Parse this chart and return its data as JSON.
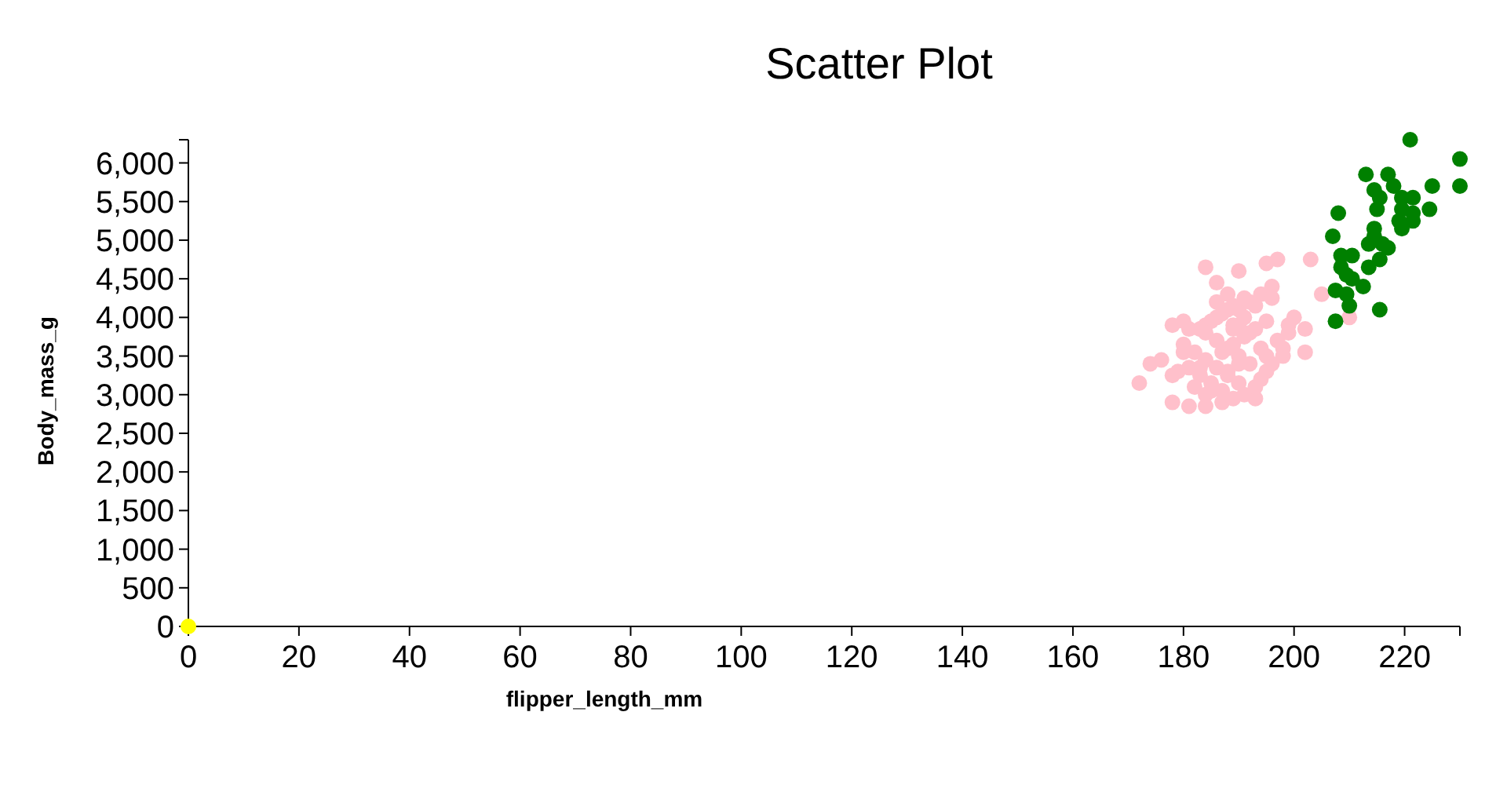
{
  "chart_data": {
    "type": "scatter",
    "title": "Scatter Plot",
    "xlabel": "flipper_length_mm",
    "ylabel": "Body_mass_g",
    "xlim": [
      0,
      230
    ],
    "ylim": [
      0,
      6300
    ],
    "xticks": [
      0,
      20,
      40,
      60,
      80,
      100,
      120,
      140,
      160,
      180,
      200,
      220
    ],
    "yticks": [
      0,
      {
        "value": 500,
        "label": "500"
      },
      {
        "value": 1000,
        "label": "1,000"
      },
      {
        "value": 1500,
        "label": "1,500"
      },
      {
        "value": 2000,
        "label": "2,000"
      },
      {
        "value": 2500,
        "label": "2,500"
      },
      {
        "value": 3000,
        "label": "3,000"
      },
      {
        "value": 3500,
        "label": "3,500"
      },
      {
        "value": 4000,
        "label": "4,000"
      },
      {
        "value": 4500,
        "label": "4,500"
      },
      {
        "value": 5000,
        "label": "5,000"
      },
      {
        "value": 5500,
        "label": "5,500"
      },
      {
        "value": 6000,
        "label": "6,000"
      }
    ],
    "marker": "circle",
    "series": [
      {
        "color": "#ffc0cb",
        "x": [
          184,
          190,
          197,
          195,
          203,
          205,
          186,
          188,
          178,
          180,
          172,
          174,
          176,
          178,
          178,
          181,
          184,
          187,
          193,
          202,
          202,
          199,
          200,
          198,
          195,
          184,
          186,
          190,
          192,
          194,
          196,
          191,
          189,
          187,
          185,
          183,
          180,
          182,
          184,
          186,
          188,
          190,
          194,
          196,
          198,
          181,
          183,
          185,
          187,
          189,
          191,
          193,
          195,
          197,
          180,
          184,
          186,
          188,
          190,
          192,
          194,
          187,
          189,
          191,
          193,
          195,
          182,
          184,
          188,
          190,
          181,
          189,
          191,
          186,
          188,
          190,
          192,
          193,
          196,
          199,
          179,
          183,
          189,
          210,
          185
        ],
        "values": [
          4650,
          4600,
          4750,
          4700,
          4750,
          4300,
          4450,
          4300,
          3900,
          3950,
          3150,
          3400,
          3450,
          3250,
          2900,
          2850,
          2850,
          2900,
          2950,
          3550,
          3850,
          3800,
          4000,
          3500,
          3500,
          3900,
          4000,
          4100,
          4200,
          4300,
          4400,
          4250,
          4150,
          4050,
          3950,
          3850,
          3650,
          3550,
          3450,
          3350,
          3250,
          3150,
          3200,
          3400,
          3600,
          3350,
          3250,
          3150,
          3050,
          2950,
          3000,
          3100,
          3300,
          3700,
          3550,
          3800,
          3700,
          3600,
          3500,
          3400,
          3600,
          3550,
          3650,
          3750,
          3850,
          3950,
          3100,
          3000,
          3300,
          3400,
          3850,
          3900,
          4000,
          4200,
          4100,
          3900,
          3800,
          4150,
          4250,
          3900,
          3300,
          3350,
          3850,
          4000,
          3050
        ]
      },
      {
        "color": "#008000",
        "x": [
          221,
          230,
          230,
          213,
          217,
          214.5,
          218,
          225,
          221.5,
          215.5,
          219.5,
          224.5,
          215,
          219.5,
          221.5,
          208,
          219,
          221.5,
          219.5,
          214.5,
          207,
          214.5,
          213.5,
          216,
          217,
          208.5,
          210.5,
          215.5,
          213.5,
          208.5,
          209.5,
          210.5,
          207.5,
          209.5,
          212.5,
          210,
          215.5,
          207.5
        ],
        "values": [
          6300,
          6050,
          5700,
          5850,
          5850,
          5650,
          5700,
          5700,
          5550,
          5550,
          5550,
          5400,
          5400,
          5400,
          5350,
          5350,
          5250,
          5250,
          5150,
          5150,
          5050,
          5050,
          4950,
          4950,
          4900,
          4800,
          4800,
          4750,
          4650,
          4650,
          4550,
          4500,
          4350,
          4300,
          4400,
          4150,
          4100,
          3950
        ]
      },
      {
        "color": "#ffff00",
        "x": [
          0
        ],
        "values": [
          0
        ]
      }
    ]
  }
}
